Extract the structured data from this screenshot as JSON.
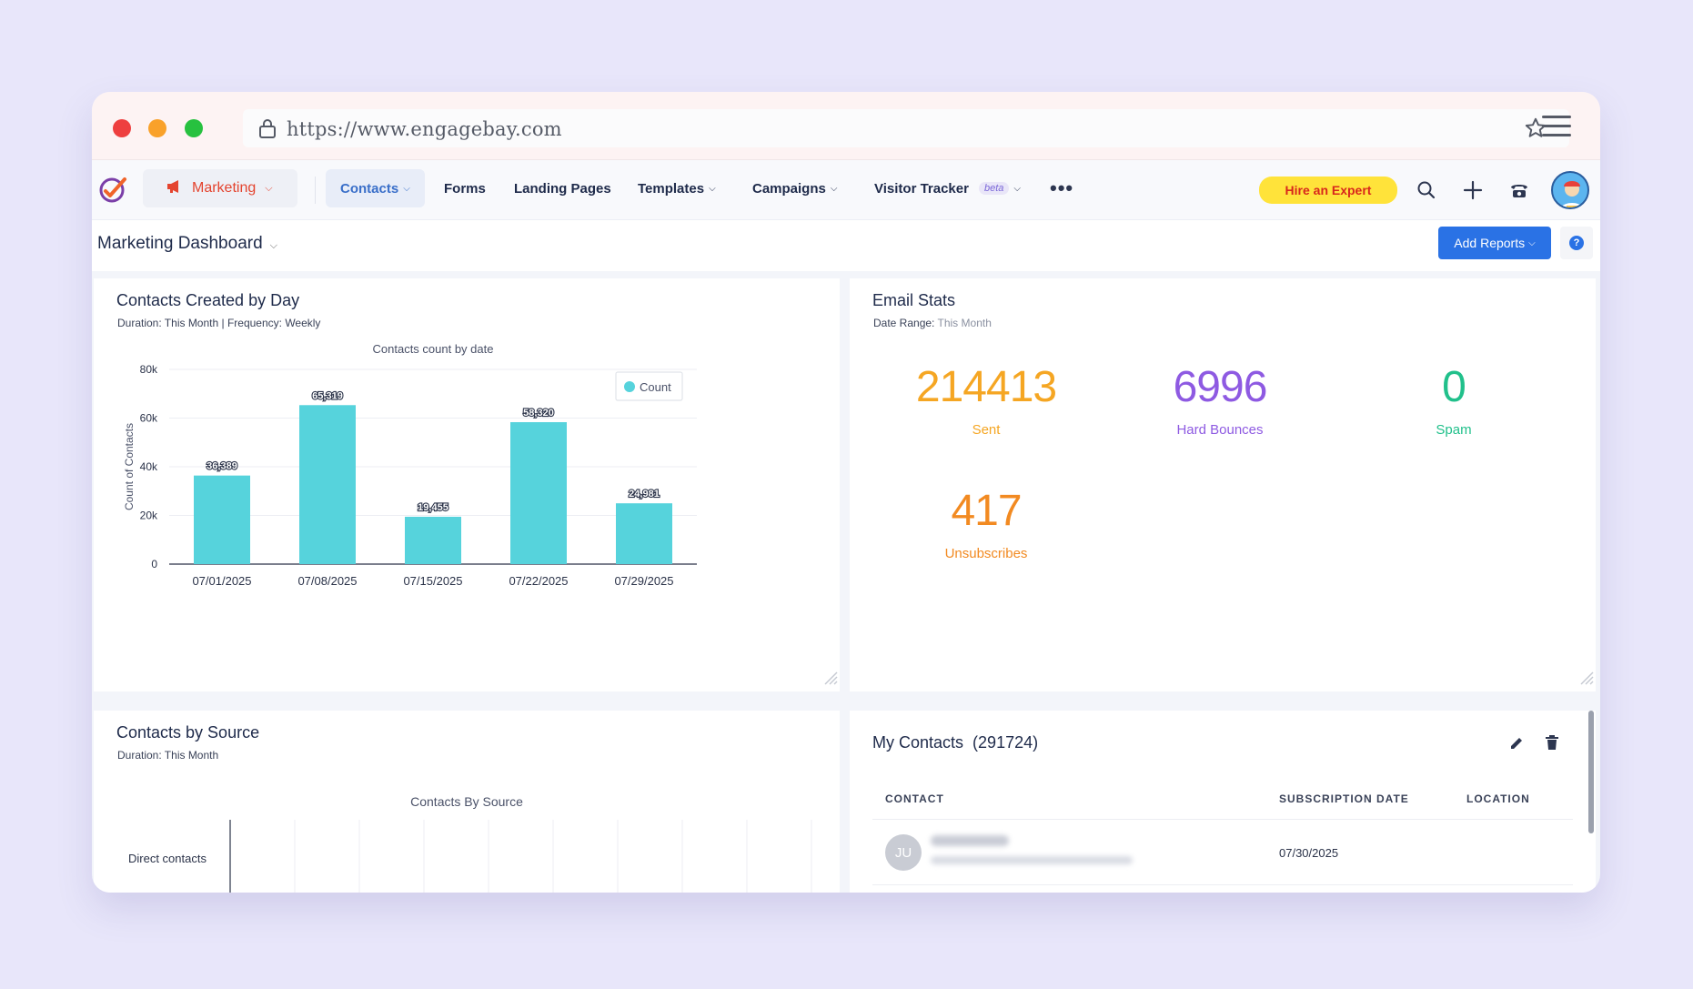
{
  "browser": {
    "url": "https://www.engagebay.com"
  },
  "nav": {
    "marketing_label": "Marketing",
    "items": [
      {
        "label": "Contacts"
      },
      {
        "label": "Forms"
      },
      {
        "label": "Landing Pages"
      },
      {
        "label": "Templates"
      },
      {
        "label": "Campaigns"
      },
      {
        "label": "Visitor Tracker"
      }
    ],
    "beta_badge": "beta",
    "more_label": "•••",
    "hire_label": "Hire an Expert",
    "icons": [
      "search-icon",
      "plus-icon",
      "phone-icon",
      "user-avatar"
    ]
  },
  "dashboard": {
    "title": "Marketing Dashboard",
    "add_reports_label": "Add Reports",
    "help_label": "?"
  },
  "contacts_by_day": {
    "title": "Contacts Created by Day",
    "subtitle": "Duration: This Month | Frequency: Weekly"
  },
  "chart_data": {
    "type": "bar",
    "title": "Contacts count by date",
    "categories": [
      "07/01/2025",
      "07/08/2025",
      "07/15/2025",
      "07/22/2025",
      "07/29/2025"
    ],
    "series": [
      {
        "name": "Count",
        "values": [
          36389,
          65319,
          19455,
          58320,
          24981
        ],
        "labels": [
          "36,389",
          "65,319",
          "19,455",
          "58,320",
          "24,981"
        ]
      }
    ],
    "ylabel": "Count of Contacts",
    "xlabel": "",
    "ylim": [
      0,
      80000
    ],
    "yticks": [
      {
        "v": 0,
        "label": "0"
      },
      {
        "v": 20000,
        "label": "20k"
      },
      {
        "v": 40000,
        "label": "40k"
      },
      {
        "v": 60000,
        "label": "60k"
      },
      {
        "v": 80000,
        "label": "80k"
      }
    ],
    "grid": true,
    "legend": "top-right",
    "color": "#56d3dc"
  },
  "email_stats": {
    "title": "Email Stats",
    "subtitle_label": "Date Range:",
    "subtitle_value": "This Month",
    "stats": [
      {
        "value": "214413",
        "label": "Sent",
        "color": "#f5a623"
      },
      {
        "value": "6996",
        "label": "Hard Bounces",
        "color": "#8e5ae2"
      },
      {
        "value": "0",
        "label": "Spam",
        "color": "#21c08b"
      },
      {
        "value": "417",
        "label": "Unsubscribes",
        "color": "#f28a21"
      }
    ]
  },
  "contacts_by_source": {
    "title": "Contacts by Source",
    "subtitle": "Duration: This Month",
    "chart_title": "Contacts By Source",
    "row_label": "Direct contacts"
  },
  "my_contacts": {
    "title": "My Contacts",
    "count": "(291724)",
    "columns": [
      "CONTACT",
      "SUBSCRIPTION DATE",
      "LOCATION"
    ],
    "rows": [
      {
        "initials": "JU",
        "subscription_date": "07/30/2025",
        "location": ""
      }
    ]
  }
}
